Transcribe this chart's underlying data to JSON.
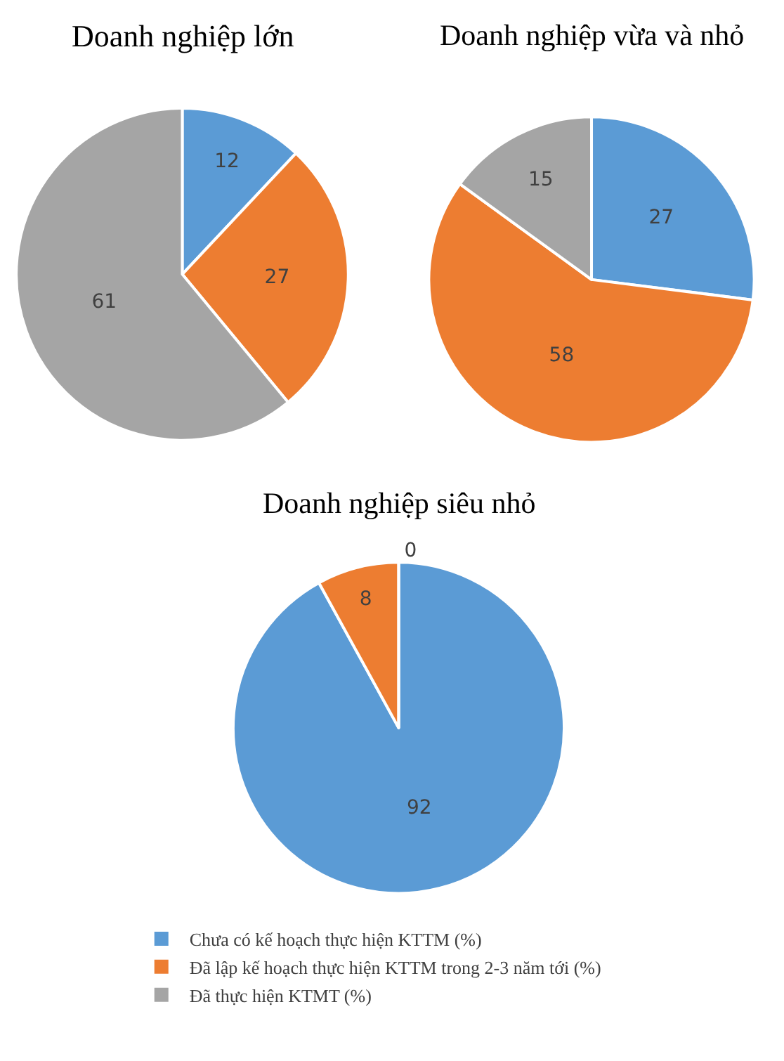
{
  "chart_data": [
    {
      "type": "pie",
      "title": "Doanh nghiệp lớn",
      "categories": [
        "Chưa có kế hoạch thực hiện KTTM (%)",
        "Đã lập kế hoạch thực hiện KTTM trong 2-3 năm tới (%)",
        "Đã thực hiện KTMT (%)"
      ],
      "values": [
        12,
        27,
        61
      ],
      "colors": [
        "#5b9bd5",
        "#ed7d31",
        "#a5a5a5"
      ],
      "data_labels": true,
      "legend": "bottom"
    },
    {
      "type": "pie",
      "title": "Doanh nghiệp vừa và nhỏ",
      "values": [
        27,
        58,
        15
      ],
      "colors": [
        "#5b9bd5",
        "#ed7d31",
        "#a5a5a5"
      ],
      "data_labels": true
    },
    {
      "type": "pie",
      "title": "Doanh nghiệp siêu nhỏ",
      "values": [
        92,
        8,
        0
      ],
      "value_labels": [
        "92",
        "8",
        "0"
      ],
      "colors": [
        "#5b9bd5",
        "#ed7d31",
        "#a5a5a5"
      ]
    }
  ]
}
